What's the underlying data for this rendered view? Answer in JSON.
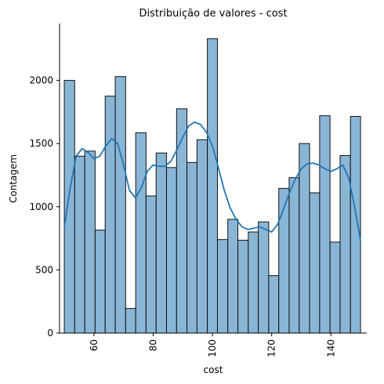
{
  "chart_data": {
    "type": "bar",
    "subtype": "histogram",
    "title": "Distribuição de valores - cost",
    "xlabel": "cost",
    "ylabel": "Contagem",
    "xlim": [
      48.4,
      152.1
    ],
    "ylim": [
      0,
      2450
    ],
    "x_ticks": [
      60,
      80,
      100,
      120,
      140
    ],
    "x_tick_rotation": 90,
    "y_ticks": [
      0,
      500,
      1000,
      1500,
      2000
    ],
    "grid": false,
    "legend": "none",
    "bin_edges": [
      50.0,
      53.5,
      56.9,
      60.4,
      63.8,
      67.2,
      70.7,
      74.1,
      77.6,
      81.0,
      84.5,
      87.9,
      91.4,
      94.8,
      98.3,
      101.7,
      105.2,
      108.6,
      112.1,
      115.5,
      119.0,
      122.4,
      125.9,
      129.3,
      132.8,
      136.2,
      139.7,
      143.1,
      146.6,
      150.0
    ],
    "counts": [
      2000,
      1400,
      1440,
      815,
      1875,
      2030,
      195,
      1585,
      1085,
      1425,
      1310,
      1775,
      1350,
      1530,
      2330,
      740,
      900,
      735,
      800,
      880,
      455,
      1145,
      1230,
      1500,
      1110,
      1720,
      720,
      1405,
      1715
    ],
    "kde": {
      "x": [
        50.0,
        52.0,
        54.0,
        56.0,
        58.0,
        60.0,
        62.0,
        64.0,
        66.0,
        68.0,
        70.0,
        72.0,
        74.0,
        76.0,
        78.0,
        80.0,
        82.0,
        84.0,
        86.0,
        88.0,
        90.0,
        92.0,
        94.0,
        96.0,
        98.0,
        100.0,
        102.0,
        104.0,
        106.0,
        108.0,
        110.0,
        112.0,
        114.0,
        116.0,
        118.0,
        120.0,
        122.0,
        124.0,
        126.0,
        128.0,
        130.0,
        132.0,
        134.0,
        136.0,
        138.0,
        140.0,
        142.0,
        144.0,
        146.0,
        148.0,
        150.0
      ],
      "y": [
        840,
        1150,
        1400,
        1460,
        1430,
        1380,
        1400,
        1480,
        1540,
        1500,
        1330,
        1130,
        1070,
        1150,
        1280,
        1330,
        1320,
        1320,
        1360,
        1450,
        1550,
        1640,
        1670,
        1650,
        1590,
        1480,
        1310,
        1130,
        990,
        900,
        840,
        820,
        830,
        840,
        820,
        800,
        860,
        980,
        1110,
        1220,
        1300,
        1340,
        1345,
        1330,
        1300,
        1280,
        1300,
        1330,
        1230,
        1000,
        730
      ]
    },
    "colors": {
      "bar_fill": "#8ab6d6",
      "bar_edge": "#111111",
      "kde_line": "#1f77b4",
      "axis": "#000000"
    }
  }
}
